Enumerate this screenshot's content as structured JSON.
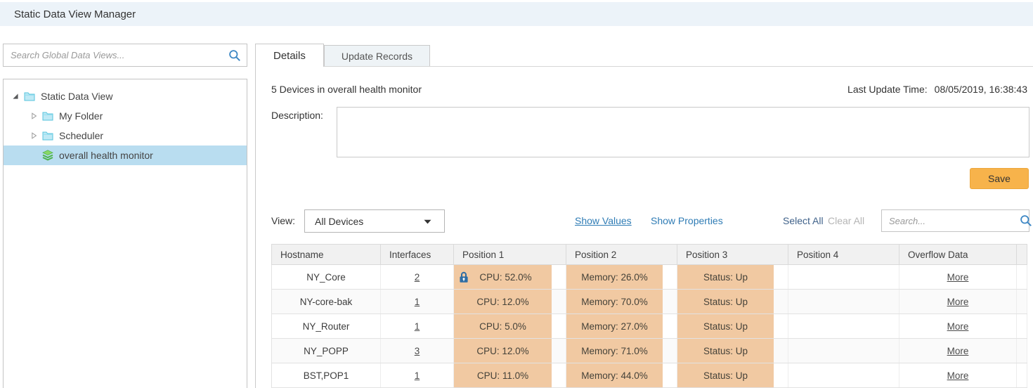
{
  "header": {
    "title": "Static Data View Manager"
  },
  "sidebar": {
    "search_placeholder": "Search Global Data Views...",
    "tree": [
      {
        "label": "Static Data View",
        "level": 0,
        "expander": "expanded",
        "icon": "folder",
        "selected": false
      },
      {
        "label": "My Folder",
        "level": 1,
        "expander": "collapsed",
        "icon": "folder",
        "selected": false
      },
      {
        "label": "Scheduler",
        "level": 1,
        "expander": "collapsed",
        "icon": "folder",
        "selected": false
      },
      {
        "label": "overall health monitor",
        "level": 1,
        "expander": "none",
        "icon": "layers",
        "selected": true
      }
    ]
  },
  "tabs": [
    {
      "label": "Details",
      "active": true
    },
    {
      "label": "Update Records",
      "active": false
    }
  ],
  "details": {
    "device_summary": "5 Devices in overall health monitor",
    "last_update_label": "Last Update Time:",
    "last_update_value": "08/05/2019, 16:38:43",
    "description_label": "Description:",
    "description_value": "",
    "save_label": "Save"
  },
  "controls": {
    "view_label": "View:",
    "view_selected": "All Devices",
    "show_values": "Show Values",
    "show_properties": "Show Properties",
    "select_all": "Select All",
    "clear_all": "Clear All",
    "search_placeholder": "Search..."
  },
  "table": {
    "columns": [
      "Hostname",
      "Interfaces",
      "Position 1",
      "Position 2",
      "Position 3",
      "Position 4",
      "Overflow Data"
    ],
    "rows": [
      {
        "hostname": "NY_Core",
        "interfaces": "2",
        "positions": [
          {
            "text": "CPU: 52.0%",
            "lock": true
          },
          {
            "text": "Memory: 26.0%",
            "lock": false
          },
          {
            "text": "Status: Up",
            "lock": false
          },
          {
            "text": "",
            "lock": false
          }
        ],
        "overflow": "More"
      },
      {
        "hostname": "NY-core-bak",
        "interfaces": "1",
        "positions": [
          {
            "text": "CPU: 12.0%",
            "lock": false
          },
          {
            "text": "Memory: 70.0%",
            "lock": false
          },
          {
            "text": "Status: Up",
            "lock": false
          },
          {
            "text": "",
            "lock": false
          }
        ],
        "overflow": "More"
      },
      {
        "hostname": "NY_Router",
        "interfaces": "1",
        "positions": [
          {
            "text": "CPU: 5.0%",
            "lock": false
          },
          {
            "text": "Memory: 27.0%",
            "lock": false
          },
          {
            "text": "Status: Up",
            "lock": false
          },
          {
            "text": "",
            "lock": false
          }
        ],
        "overflow": "More"
      },
      {
        "hostname": "NY_POPP",
        "interfaces": "3",
        "positions": [
          {
            "text": "CPU: 12.0%",
            "lock": false
          },
          {
            "text": "Memory: 71.0%",
            "lock": false
          },
          {
            "text": "Status: Up",
            "lock": false
          },
          {
            "text": "",
            "lock": false
          }
        ],
        "overflow": "More"
      },
      {
        "hostname": "BST,POP1",
        "interfaces": "1",
        "positions": [
          {
            "text": "CPU: 11.0%",
            "lock": false
          },
          {
            "text": "Memory: 44.0%",
            "lock": false
          },
          {
            "text": "Status: Up",
            "lock": false
          },
          {
            "text": "",
            "lock": false
          }
        ],
        "overflow": "More"
      }
    ]
  },
  "icons": {
    "search": "magnifier",
    "lock": "padlock",
    "dropdown": "caret-down",
    "folder": "folder",
    "layers": "layers-stack",
    "expanded": "triangle-corner",
    "collapsed": "triangle-right"
  },
  "colors": {
    "header_bg": "#ecf3f9",
    "selected_tree_item": "#b9ddf0",
    "highlight_cell": "#f1c9a2",
    "save_button": "#f7b34b",
    "link_blue": "#2f7cb5",
    "icon_blue": "#3d87c4",
    "lock_blue": "#2e6da4",
    "folder_cyan": "#56c3dc",
    "layers_green": "#62c152"
  }
}
